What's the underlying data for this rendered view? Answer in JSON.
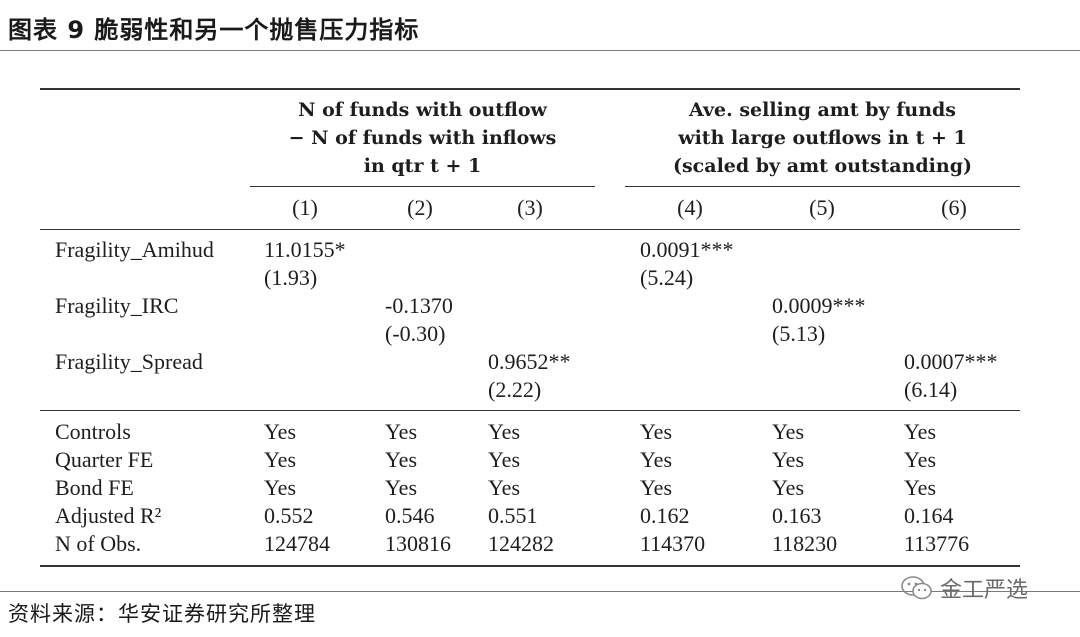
{
  "figure_title": "图表 9 脆弱性和另一个抛售压力指标",
  "headers": {
    "group_left": {
      "line1": "N of funds with outflow",
      "line2": "− N of funds with inflows",
      "line3": "in qtr t + 1"
    },
    "group_right": {
      "line1": "Ave. selling amt by funds",
      "line2": "with large outflows in t + 1",
      "line3": "(scaled by amt outstanding)"
    },
    "columns": [
      "(1)",
      "(2)",
      "(3)",
      "(4)",
      "(5)",
      "(6)"
    ]
  },
  "coef_rows": [
    {
      "label": "Fragility_Amihud",
      "cells": [
        {
          "col": 0,
          "value": "11.0155*",
          "stat": "(1.93)"
        },
        {
          "col": 3,
          "value": "0.0091***",
          "stat": "(5.24)"
        }
      ]
    },
    {
      "label": "Fragility_IRC",
      "cells": [
        {
          "col": 1,
          "value": "-0.1370",
          "stat": "(-0.30)"
        },
        {
          "col": 4,
          "value": "0.0009***",
          "stat": "(5.13)"
        }
      ]
    },
    {
      "label": "Fragility_Spread",
      "cells": [
        {
          "col": 2,
          "value": "0.9652**",
          "stat": "(2.22)"
        },
        {
          "col": 5,
          "value": "0.0007***",
          "stat": "(6.14)"
        }
      ]
    }
  ],
  "summary_rows": [
    {
      "label": "Controls",
      "values": [
        "Yes",
        "Yes",
        "Yes",
        "Yes",
        "Yes",
        "Yes"
      ]
    },
    {
      "label": "Quarter FE",
      "values": [
        "Yes",
        "Yes",
        "Yes",
        "Yes",
        "Yes",
        "Yes"
      ]
    },
    {
      "label": "Bond FE",
      "values": [
        "Yes",
        "Yes",
        "Yes",
        "Yes",
        "Yes",
        "Yes"
      ]
    },
    {
      "label": "Adjusted R²",
      "values": [
        "0.552",
        "0.546",
        "0.551",
        "0.162",
        "0.163",
        "0.164"
      ]
    },
    {
      "label": "N of Obs.",
      "values": [
        "124784",
        "130816",
        "124282",
        "114370",
        "118230",
        "113776"
      ]
    }
  ],
  "source": "资料来源：华安证券研究所整理",
  "watermark": {
    "text": "金工严选",
    "icon": "wechat-icon"
  }
}
